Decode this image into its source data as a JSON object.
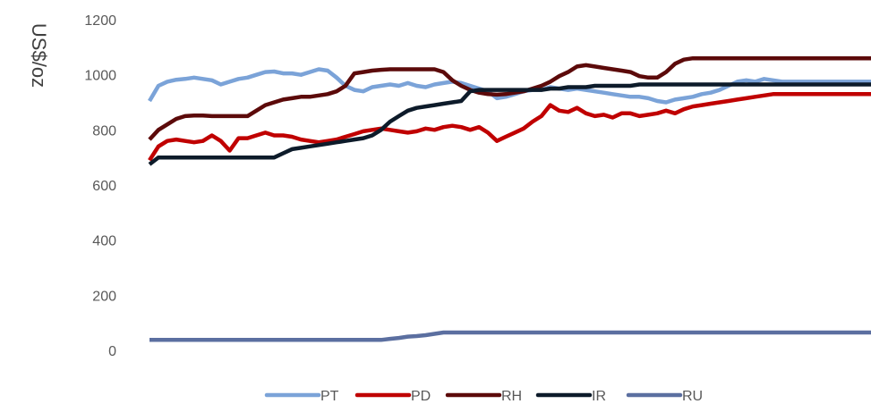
{
  "chart_data": {
    "type": "line",
    "ylabel": "US$/oz",
    "ylim": [
      0,
      1200
    ],
    "yticks": [
      "0",
      "200",
      "400",
      "600",
      "800",
      "1000",
      "1200"
    ],
    "ytick_values": [
      0,
      200,
      400,
      600,
      800,
      1000,
      1200
    ],
    "grid": false,
    "legend": "bottom",
    "x": [
      0,
      10,
      20,
      30,
      40,
      50,
      60,
      70,
      80,
      90,
      100,
      110,
      120,
      130,
      140,
      150,
      160,
      170,
      180,
      190,
      200,
      210,
      220,
      230,
      240,
      250,
      260,
      270,
      280,
      290,
      300,
      310,
      320,
      330,
      340,
      350,
      360,
      370,
      380,
      390,
      400,
      410,
      420,
      430,
      440,
      450,
      460,
      470,
      480,
      490,
      500,
      510,
      520,
      530,
      540,
      550,
      560,
      570,
      580,
      590,
      600,
      610,
      620,
      630,
      640,
      650,
      660,
      670,
      680,
      690,
      700,
      710,
      720,
      730,
      740,
      750,
      760,
      770,
      780,
      790,
      800,
      810
    ],
    "series": [
      {
        "name": "PT",
        "color": "#7BA3D8",
        "values": [
          905,
          960,
          975,
          982,
          985,
          990,
          985,
          980,
          965,
          975,
          985,
          990,
          1000,
          1010,
          1012,
          1005,
          1005,
          1000,
          1010,
          1020,
          1015,
          990,
          960,
          945,
          940,
          955,
          960,
          965,
          960,
          970,
          960,
          955,
          965,
          970,
          975,
          970,
          960,
          950,
          940,
          915,
          920,
          930,
          940,
          945,
          945,
          955,
          950,
          945,
          950,
          945,
          940,
          935,
          930,
          925,
          920,
          920,
          915,
          905,
          900,
          910,
          915,
          920,
          930,
          935,
          945,
          960,
          975,
          980,
          975,
          985,
          980,
          975,
          975,
          975,
          975,
          975,
          975,
          975,
          975,
          975,
          975,
          975
        ]
      },
      {
        "name": "PD",
        "color": "#C00000",
        "values": [
          690,
          740,
          760,
          765,
          760,
          755,
          760,
          780,
          760,
          725,
          770,
          770,
          780,
          790,
          780,
          780,
          775,
          765,
          760,
          755,
          760,
          765,
          775,
          785,
          795,
          800,
          805,
          800,
          795,
          790,
          795,
          805,
          800,
          810,
          815,
          810,
          800,
          810,
          790,
          760,
          775,
          790,
          805,
          830,
          850,
          890,
          870,
          865,
          880,
          860,
          850,
          855,
          845,
          860,
          860,
          850,
          855,
          860,
          870,
          860,
          875,
          885,
          890,
          895,
          900,
          905,
          910,
          915,
          920,
          925,
          930,
          930,
          930,
          930,
          930,
          930,
          930,
          930,
          930,
          930,
          930,
          930
        ]
      },
      {
        "name": "RH",
        "color": "#5C0A0A",
        "values": [
          765,
          800,
          820,
          840,
          850,
          852,
          852,
          850,
          850,
          850,
          850,
          850,
          870,
          890,
          900,
          910,
          915,
          920,
          920,
          925,
          930,
          940,
          960,
          1005,
          1010,
          1015,
          1018,
          1020,
          1020,
          1020,
          1020,
          1020,
          1020,
          1010,
          980,
          960,
          945,
          935,
          930,
          928,
          930,
          935,
          940,
          950,
          960,
          975,
          995,
          1010,
          1030,
          1035,
          1030,
          1025,
          1020,
          1015,
          1010,
          995,
          990,
          990,
          1010,
          1040,
          1055,
          1060,
          1060,
          1060,
          1060,
          1060,
          1060,
          1060,
          1060,
          1060,
          1060,
          1060,
          1060,
          1060,
          1060,
          1060,
          1060,
          1060,
          1060,
          1060,
          1060,
          1060
        ]
      },
      {
        "name": "IR",
        "color": "#0D1B2A",
        "values": [
          675,
          700,
          700,
          700,
          700,
          700,
          700,
          700,
          700,
          700,
          700,
          700,
          700,
          700,
          700,
          715,
          730,
          735,
          740,
          745,
          750,
          755,
          760,
          765,
          770,
          780,
          800,
          830,
          850,
          870,
          880,
          885,
          890,
          895,
          900,
          905,
          940,
          945,
          945,
          945,
          945,
          945,
          945,
          945,
          945,
          950,
          950,
          955,
          955,
          955,
          960,
          960,
          960,
          960,
          960,
          965,
          965,
          965,
          965,
          965,
          965,
          965,
          965,
          965,
          965,
          965,
          965,
          965,
          965,
          965,
          965,
          965,
          965,
          965,
          965,
          965,
          965,
          965,
          965,
          965,
          965,
          965
        ]
      },
      {
        "name": "RU",
        "color": "#5B6FA0",
        "values": [
          38,
          38,
          38,
          38,
          38,
          38,
          38,
          38,
          38,
          38,
          38,
          38,
          38,
          38,
          38,
          38,
          38,
          38,
          38,
          38,
          38,
          38,
          38,
          38,
          38,
          38,
          38,
          42,
          45,
          50,
          52,
          55,
          60,
          65,
          65,
          65,
          65,
          65,
          65,
          65,
          65,
          65,
          65,
          65,
          65,
          65,
          65,
          65,
          65,
          65,
          65,
          65,
          65,
          65,
          65,
          65,
          65,
          65,
          65,
          65,
          65,
          65,
          65,
          65,
          65,
          65,
          65,
          65,
          65,
          65,
          65,
          65,
          65,
          65,
          65,
          65,
          65,
          65,
          65,
          65,
          65,
          65
        ]
      }
    ]
  }
}
